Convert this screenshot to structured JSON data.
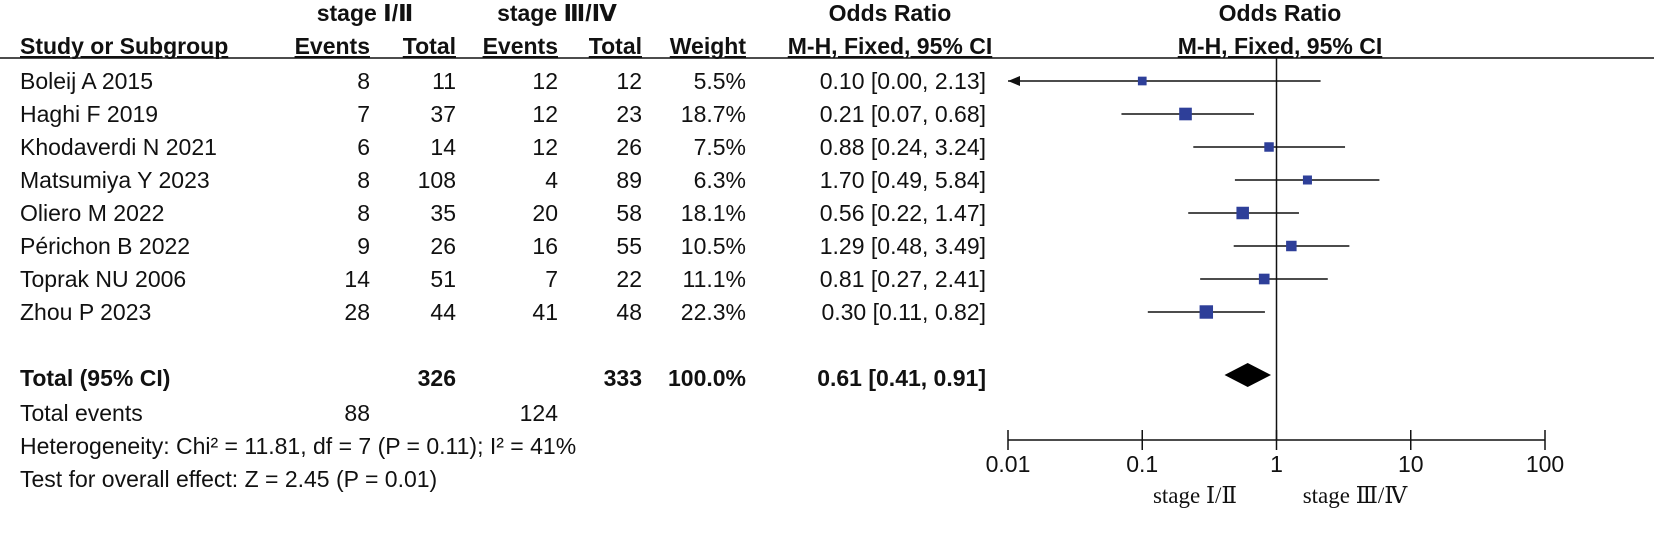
{
  "header": {
    "group1": "stage Ⅰ/Ⅱ",
    "group2": "stage Ⅲ/Ⅳ",
    "or_title_left": "Odds Ratio",
    "or_title_right": "Odds Ratio",
    "col_study": "Study or Subgroup",
    "col_events1": "Events",
    "col_total1": "Total",
    "col_events2": "Events",
    "col_total2": "Total",
    "col_weight": "Weight",
    "col_method_left": "M-H, Fixed, 95% CI",
    "col_method_right": "M-H, Fixed, 95% CI"
  },
  "studies": [
    {
      "name": "Boleij A 2015",
      "e1": "8",
      "t1": "11",
      "e2": "12",
      "t2": "12",
      "weight": "5.5%",
      "ci_text": "0.10 [0.00, 2.13]"
    },
    {
      "name": "Haghi F 2019",
      "e1": "7",
      "t1": "37",
      "e2": "12",
      "t2": "23",
      "weight": "18.7%",
      "ci_text": "0.21 [0.07, 0.68]"
    },
    {
      "name": "Khodaverdi N 2021",
      "e1": "6",
      "t1": "14",
      "e2": "12",
      "t2": "26",
      "weight": "7.5%",
      "ci_text": "0.88 [0.24, 3.24]"
    },
    {
      "name": "Matsumiya Y 2023",
      "e1": "8",
      "t1": "108",
      "e2": "4",
      "t2": "89",
      "weight": "6.3%",
      "ci_text": "1.70 [0.49, 5.84]"
    },
    {
      "name": "Oliero M 2022",
      "e1": "8",
      "t1": "35",
      "e2": "20",
      "t2": "58",
      "weight": "18.1%",
      "ci_text": "0.56 [0.22, 1.47]"
    },
    {
      "name": "Périchon B 2022",
      "e1": "9",
      "t1": "26",
      "e2": "16",
      "t2": "55",
      "weight": "10.5%",
      "ci_text": "1.29 [0.48, 3.49]"
    },
    {
      "name": "Toprak NU 2006",
      "e1": "14",
      "t1": "51",
      "e2": "7",
      "t2": "22",
      "weight": "11.1%",
      "ci_text": "0.81 [0.27, 2.41]"
    },
    {
      "name": "Zhou P 2023",
      "e1": "28",
      "t1": "44",
      "e2": "41",
      "t2": "48",
      "weight": "22.3%",
      "ci_text": "0.30 [0.11, 0.82]"
    }
  ],
  "total": {
    "label": "Total (95% CI)",
    "t1": "326",
    "t2": "333",
    "weight": "100.0%",
    "ci_text": "0.61 [0.41, 0.91]"
  },
  "total_events": {
    "label": "Total events",
    "e1": "88",
    "e2": "124"
  },
  "heterogeneity": "Heterogeneity: Chi² = 11.81, df = 7 (P = 0.11); I² = 41%",
  "overall_effect": "Test for overall effect: Z = 2.45 (P = 0.01)",
  "chart_data": {
    "type": "forest",
    "x_scale": "log",
    "xlim": [
      0.01,
      100
    ],
    "ticks": [
      "0.01",
      "0.1",
      "1",
      "10",
      "100"
    ],
    "tick_values": [
      0.01,
      0.1,
      1,
      10,
      100
    ],
    "xlabel_left": "stage Ⅰ/Ⅱ",
    "xlabel_right": "stage Ⅲ/Ⅳ",
    "reference_line": 1,
    "series": [
      {
        "label": "Boleij A 2015",
        "or": 0.1,
        "lower": 0.001,
        "upper": 2.13,
        "weight": 5.5
      },
      {
        "label": "Haghi F 2019",
        "or": 0.21,
        "lower": 0.07,
        "upper": 0.68,
        "weight": 18.7
      },
      {
        "label": "Khodaverdi N 2021",
        "or": 0.88,
        "lower": 0.24,
        "upper": 3.24,
        "weight": 7.5
      },
      {
        "label": "Matsumiya Y 2023",
        "or": 1.7,
        "lower": 0.49,
        "upper": 5.84,
        "weight": 6.3
      },
      {
        "label": "Oliero M 2022",
        "or": 0.56,
        "lower": 0.22,
        "upper": 1.47,
        "weight": 18.1
      },
      {
        "label": "Périchon B 2022",
        "or": 1.29,
        "lower": 0.48,
        "upper": 3.49,
        "weight": 10.5
      },
      {
        "label": "Toprak NU 2006",
        "or": 0.81,
        "lower": 0.27,
        "upper": 2.41,
        "weight": 11.1
      },
      {
        "label": "Zhou P 2023",
        "or": 0.3,
        "lower": 0.11,
        "upper": 0.82,
        "weight": 22.3
      }
    ],
    "pooled": {
      "or": 0.61,
      "lower": 0.41,
      "upper": 0.91
    },
    "colors": {
      "marker": "#2e3f99",
      "line": "#111111",
      "diamond": "#000000"
    }
  }
}
